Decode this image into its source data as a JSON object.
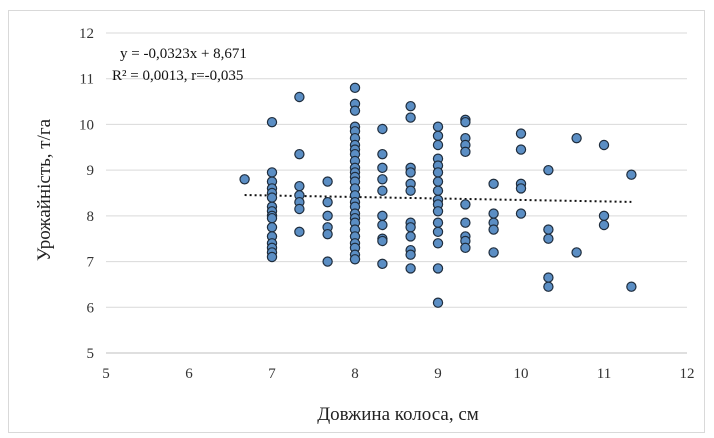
{
  "chart_data": {
    "type": "scatter",
    "title": "",
    "xlabel": "Довжина колоса, см",
    "ylabel": "Урожайність, т/га",
    "xlim": [
      5,
      12
    ],
    "ylim": [
      5,
      12
    ],
    "xticks": [
      5,
      6,
      7,
      8,
      9,
      10,
      11,
      12
    ],
    "yticks": [
      5,
      6,
      7,
      8,
      9,
      10,
      11,
      12
    ],
    "grid": "horizontal",
    "marker_color": "#5b8ec4",
    "marker_edge": "#1f2d3d",
    "trend": {
      "type": "linear",
      "slope": -0.0323,
      "intercept": 8.671,
      "x_range": [
        6.67,
        11.33
      ],
      "equation_label": "y = -0,0323x + 8,671",
      "stats_label": "R² = 0,0013, r=-0,035"
    },
    "points": [
      [
        6.67,
        8.8
      ],
      [
        7,
        10.05
      ],
      [
        7,
        8.95
      ],
      [
        7,
        8.75
      ],
      [
        7,
        8.6
      ],
      [
        7,
        8.5
      ],
      [
        7,
        8.4
      ],
      [
        7,
        8.2
      ],
      [
        7,
        8.1
      ],
      [
        7,
        8.0
      ],
      [
        7,
        7.95
      ],
      [
        7,
        7.75
      ],
      [
        7,
        7.55
      ],
      [
        7,
        7.4
      ],
      [
        7,
        7.3
      ],
      [
        7,
        7.2
      ],
      [
        7,
        7.1
      ],
      [
        7.33,
        10.6
      ],
      [
        7.33,
        9.35
      ],
      [
        7.33,
        8.65
      ],
      [
        7.33,
        8.45
      ],
      [
        7.33,
        8.3
      ],
      [
        7.33,
        8.15
      ],
      [
        7.33,
        7.65
      ],
      [
        7.67,
        8.75
      ],
      [
        7.67,
        8.3
      ],
      [
        7.67,
        8.0
      ],
      [
        7.67,
        7.75
      ],
      [
        7.67,
        7.6
      ],
      [
        7.67,
        7.0
      ],
      [
        8,
        10.8
      ],
      [
        8,
        10.45
      ],
      [
        8,
        10.3
      ],
      [
        8,
        9.95
      ],
      [
        8,
        9.85
      ],
      [
        8,
        9.7
      ],
      [
        8,
        9.55
      ],
      [
        8,
        9.45
      ],
      [
        8,
        9.35
      ],
      [
        8,
        9.2
      ],
      [
        8,
        9.05
      ],
      [
        8,
        8.95
      ],
      [
        8,
        8.85
      ],
      [
        8,
        8.75
      ],
      [
        8,
        8.6
      ],
      [
        8,
        8.45
      ],
      [
        8,
        8.3
      ],
      [
        8,
        8.2
      ],
      [
        8,
        8.05
      ],
      [
        8,
        7.95
      ],
      [
        8,
        7.85
      ],
      [
        8,
        7.7
      ],
      [
        8,
        7.55
      ],
      [
        8,
        7.4
      ],
      [
        8,
        7.3
      ],
      [
        8,
        7.15
      ],
      [
        8,
        7.05
      ],
      [
        8.33,
        9.9
      ],
      [
        8.33,
        9.35
      ],
      [
        8.33,
        9.05
      ],
      [
        8.33,
        8.8
      ],
      [
        8.33,
        8.55
      ],
      [
        8.33,
        8.0
      ],
      [
        8.33,
        7.8
      ],
      [
        8.33,
        7.5
      ],
      [
        8.33,
        7.45
      ],
      [
        8.33,
        6.95
      ],
      [
        8.67,
        10.4
      ],
      [
        8.67,
        10.15
      ],
      [
        8.67,
        9.05
      ],
      [
        8.67,
        8.95
      ],
      [
        8.67,
        8.7
      ],
      [
        8.67,
        8.55
      ],
      [
        8.67,
        7.85
      ],
      [
        8.67,
        7.75
      ],
      [
        8.67,
        7.55
      ],
      [
        8.67,
        7.25
      ],
      [
        8.67,
        7.15
      ],
      [
        8.67,
        6.85
      ],
      [
        9,
        9.95
      ],
      [
        9,
        9.75
      ],
      [
        9,
        9.55
      ],
      [
        9,
        9.25
      ],
      [
        9,
        9.1
      ],
      [
        9,
        8.95
      ],
      [
        9,
        8.75
      ],
      [
        9,
        8.55
      ],
      [
        9,
        8.35
      ],
      [
        9,
        8.25
      ],
      [
        9,
        8.1
      ],
      [
        9,
        7.85
      ],
      [
        9,
        7.65
      ],
      [
        9,
        7.4
      ],
      [
        9,
        6.85
      ],
      [
        9,
        6.1
      ],
      [
        9.33,
        10.1
      ],
      [
        9.33,
        10.05
      ],
      [
        9.33,
        9.7
      ],
      [
        9.33,
        9.55
      ],
      [
        9.33,
        9.4
      ],
      [
        9.33,
        8.25
      ],
      [
        9.33,
        7.85
      ],
      [
        9.33,
        7.55
      ],
      [
        9.33,
        7.45
      ],
      [
        9.33,
        7.3
      ],
      [
        9.67,
        8.7
      ],
      [
        9.67,
        8.05
      ],
      [
        9.67,
        7.85
      ],
      [
        9.67,
        7.7
      ],
      [
        9.67,
        7.2
      ],
      [
        10,
        9.8
      ],
      [
        10,
        9.45
      ],
      [
        10,
        8.7
      ],
      [
        10,
        8.6
      ],
      [
        10,
        8.05
      ],
      [
        10.33,
        9.0
      ],
      [
        10.33,
        7.7
      ],
      [
        10.33,
        7.5
      ],
      [
        10.33,
        6.65
      ],
      [
        10.33,
        6.45
      ],
      [
        10.67,
        9.7
      ],
      [
        10.67,
        7.2
      ],
      [
        11,
        9.55
      ],
      [
        11,
        8.0
      ],
      [
        11,
        7.8
      ],
      [
        11.33,
        8.9
      ],
      [
        11.33,
        6.45
      ]
    ]
  }
}
